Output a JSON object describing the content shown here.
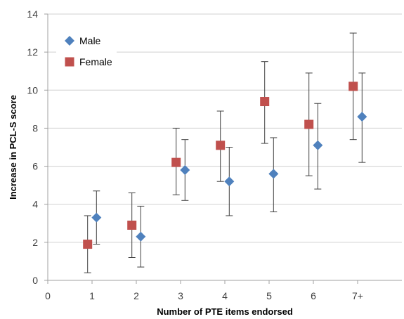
{
  "chart_data": {
    "type": "scatter",
    "title": "",
    "xlabel": "Number of PTE items endorsed",
    "ylabel": "Increase in PCL-S score",
    "x_tick_labels": [
      "0",
      "1",
      "2",
      "3",
      "4",
      "5",
      "6",
      "7+"
    ],
    "y_ticks": [
      0,
      2,
      4,
      6,
      8,
      10,
      12,
      14
    ],
    "xlim": [
      0,
      8
    ],
    "ylim": [
      0,
      14
    ],
    "grid": "horizontal",
    "legend_position": "top-left",
    "series": [
      {
        "name": "Male",
        "color": "#4F81BD",
        "marker": "diamond",
        "x": [
          1,
          2,
          3,
          4,
          5,
          6,
          7
        ],
        "y": [
          3.3,
          2.3,
          5.8,
          5.2,
          5.6,
          7.1,
          8.6
        ],
        "err_low": [
          1.9,
          0.7,
          4.2,
          3.4,
          3.6,
          4.8,
          6.2
        ],
        "err_high": [
          4.7,
          3.9,
          7.4,
          7.0,
          7.5,
          9.3,
          10.9
        ]
      },
      {
        "name": "Female",
        "color": "#C0504D",
        "marker": "square",
        "x": [
          1,
          2,
          3,
          4,
          5,
          6,
          7
        ],
        "y": [
          1.9,
          2.9,
          6.2,
          7.1,
          9.4,
          8.2,
          10.2
        ],
        "err_low": [
          0.4,
          1.2,
          4.5,
          5.2,
          7.2,
          5.5,
          7.4
        ],
        "err_high": [
          3.4,
          4.6,
          8.0,
          8.9,
          11.5,
          10.9,
          13.0
        ]
      }
    ]
  }
}
